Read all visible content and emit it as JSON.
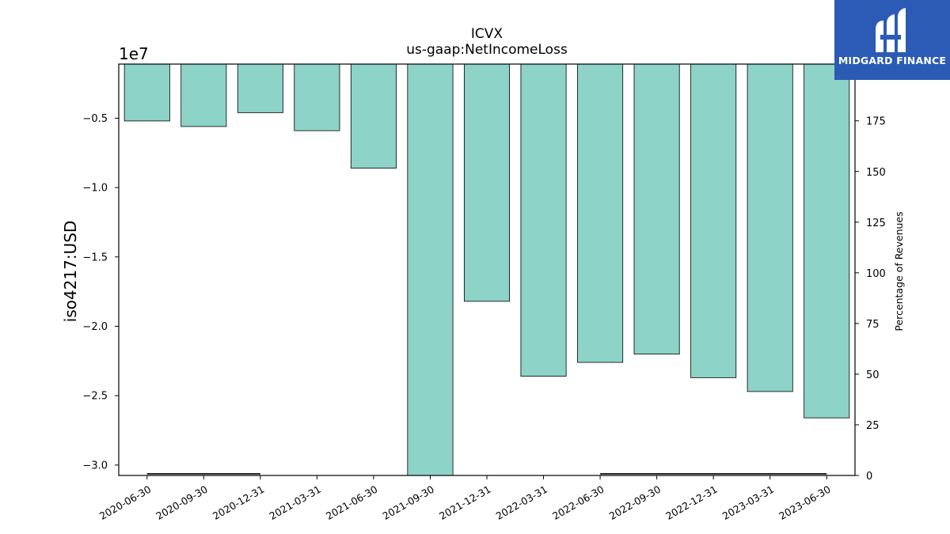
{
  "chart_data": {
    "type": "bar",
    "title": "ICVX",
    "subtitle": "us-gaap:NetIncomeLoss",
    "ylabel": "iso4217:USD",
    "y2label": "Percentage of Revenues",
    "offset_text": "1e7",
    "categories": [
      "2020-06-30",
      "2020-09-30",
      "2020-12-31",
      "2021-03-31",
      "2021-06-30",
      "2021-09-30",
      "2021-12-31",
      "2022-03-31",
      "2022-06-30",
      "2022-09-30",
      "2022-12-31",
      "2023-03-31",
      "2023-06-30"
    ],
    "values": [
      -5200000,
      -5600000,
      -4600000,
      -5900000,
      -8600000,
      -30800000,
      -18200000,
      -23600000,
      -22600000,
      -22000000,
      -23700000,
      -24700000,
      -26600000
    ],
    "ylim": [
      -30750000,
      -1100000
    ],
    "yticks": [
      -5000000,
      -10000000,
      -15000000,
      -20000000,
      -25000000,
      -30000000
    ],
    "ytick_labels": [
      "−0.5",
      "−1.0",
      "−1.5",
      "−2.0",
      "−2.5",
      "−3.0"
    ],
    "y2lim": [
      0,
      203
    ],
    "y2ticks": [
      0,
      25,
      50,
      75,
      100,
      125,
      150,
      175
    ],
    "y2tick_labels": [
      "0",
      "25",
      "50",
      "75",
      "100",
      "125",
      "150",
      "175"
    ],
    "percentage_series": [
      {
        "x_from": "2020-06-30",
        "x_to": "2020-12-31",
        "value": 0.4
      },
      {
        "x_from": "2022-06-30",
        "x_to": "2023-06-30",
        "value": 0.4
      }
    ],
    "bar_color": "#8dd3c7",
    "grid": false
  },
  "logo": {
    "text": "MIDGARD FINANCE",
    "background": "#2b5bb5"
  }
}
